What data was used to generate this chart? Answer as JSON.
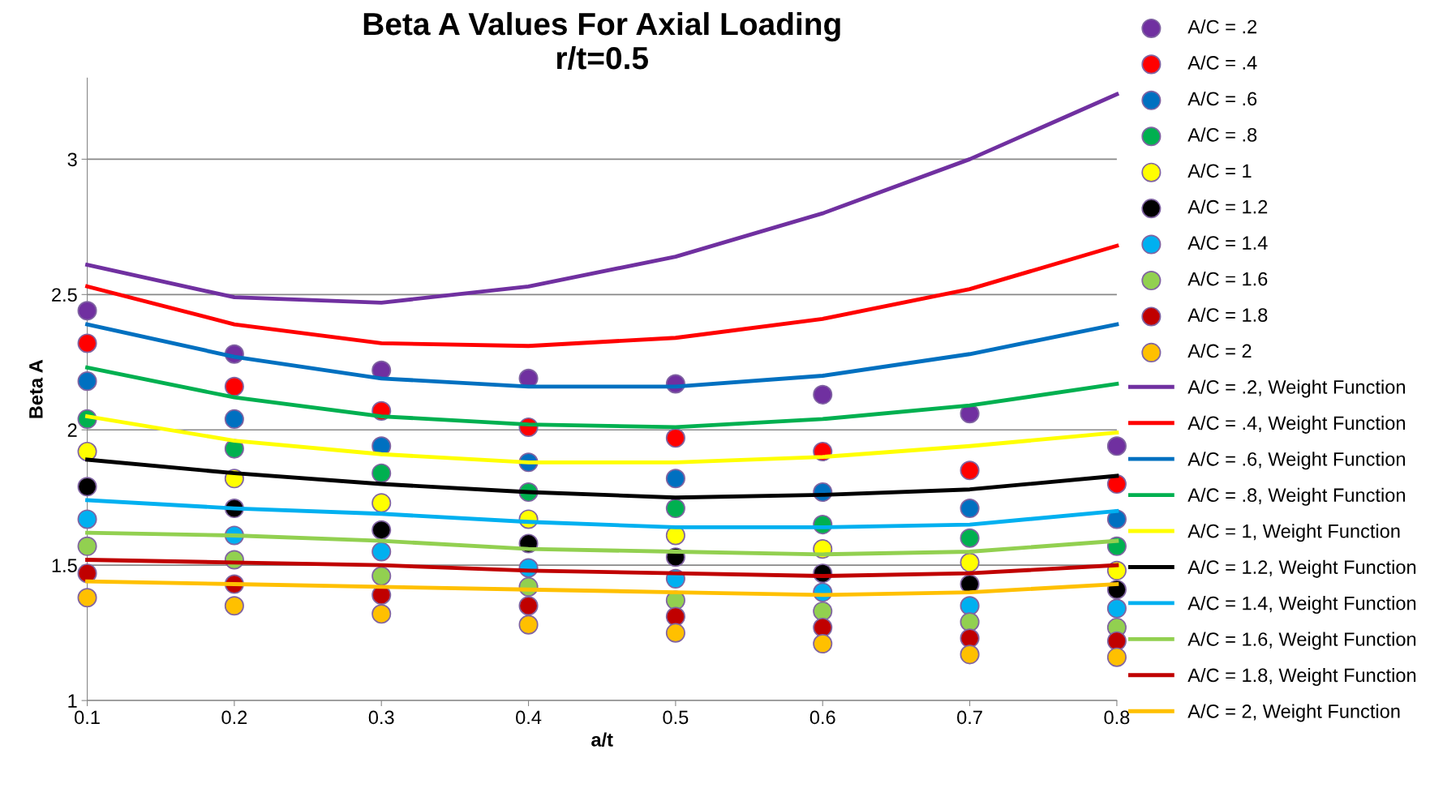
{
  "chart_data": {
    "type": "line",
    "title": "Beta A Values For Axial Loading\nr/t=0.5",
    "xlabel": "a/t",
    "ylabel": "Beta A",
    "x": [
      0.1,
      0.2,
      0.3,
      0.4,
      0.5,
      0.6,
      0.7,
      0.8
    ],
    "xlim": [
      0.1,
      0.8
    ],
    "xticks": [
      0.1,
      0.2,
      0.3,
      0.4,
      0.5,
      0.6,
      0.7,
      0.8
    ],
    "ylim": [
      1,
      3.3
    ],
    "yticks": [
      1,
      1.5,
      2,
      2.5,
      3
    ],
    "grid": "y",
    "legend": "right",
    "series": [
      {
        "name": "A/C = .2",
        "type": "scatter",
        "marker": "circle",
        "color": "#7030a0",
        "values": [
          2.44,
          2.28,
          2.22,
          2.19,
          2.17,
          2.13,
          2.06,
          1.94
        ]
      },
      {
        "name": "A/C = .4",
        "type": "scatter",
        "marker": "circle",
        "color": "#ff0000",
        "values": [
          2.32,
          2.16,
          2.07,
          2.01,
          1.97,
          1.92,
          1.85,
          1.8
        ]
      },
      {
        "name": "A/C = .6",
        "type": "scatter",
        "marker": "circle",
        "color": "#0070c0",
        "values": [
          2.18,
          2.04,
          1.94,
          1.88,
          1.82,
          1.77,
          1.71,
          1.67
        ]
      },
      {
        "name": "A/C = .8",
        "type": "scatter",
        "marker": "circle",
        "color": "#00b050",
        "values": [
          2.04,
          1.93,
          1.84,
          1.77,
          1.71,
          1.65,
          1.6,
          1.57
        ]
      },
      {
        "name": "A/C = 1",
        "type": "scatter",
        "marker": "circle",
        "color": "#ffff00",
        "values": [
          1.92,
          1.82,
          1.73,
          1.67,
          1.61,
          1.56,
          1.51,
          1.48
        ]
      },
      {
        "name": "A/C = 1.2",
        "type": "scatter",
        "marker": "circle",
        "color": "#000000",
        "values": [
          1.79,
          1.71,
          1.63,
          1.58,
          1.53,
          1.47,
          1.43,
          1.41
        ]
      },
      {
        "name": "A/C = 1.4",
        "type": "scatter",
        "marker": "circle",
        "color": "#00b0f0",
        "values": [
          1.67,
          1.61,
          1.55,
          1.49,
          1.45,
          1.4,
          1.35,
          1.34
        ]
      },
      {
        "name": "A/C = 1.6",
        "type": "scatter",
        "marker": "circle",
        "color": "#92d050",
        "values": [
          1.57,
          1.52,
          1.46,
          1.42,
          1.37,
          1.33,
          1.29,
          1.27
        ]
      },
      {
        "name": "A/C = 1.8",
        "type": "scatter",
        "marker": "circle",
        "color": "#c00000",
        "values": [
          1.47,
          1.43,
          1.39,
          1.35,
          1.31,
          1.27,
          1.23,
          1.22
        ]
      },
      {
        "name": "A/C = 2",
        "type": "scatter",
        "marker": "circle",
        "color": "#ffc000",
        "values": [
          1.38,
          1.35,
          1.32,
          1.28,
          1.25,
          1.21,
          1.17,
          1.16
        ]
      },
      {
        "name": "A/C = .2, Weight Function",
        "color": "#7030a0",
        "values": [
          2.61,
          2.49,
          2.47,
          2.53,
          2.64,
          2.8,
          3.0,
          3.24
        ]
      },
      {
        "name": "A/C = .4, Weight Function",
        "color": "#ff0000",
        "values": [
          2.53,
          2.39,
          2.32,
          2.31,
          2.34,
          2.41,
          2.52,
          2.68
        ]
      },
      {
        "name": "A/C = .6, Weight Function",
        "color": "#0070c0",
        "values": [
          2.39,
          2.27,
          2.19,
          2.16,
          2.16,
          2.2,
          2.28,
          2.39
        ]
      },
      {
        "name": "A/C = .8, Weight Function",
        "color": "#00b050",
        "values": [
          2.23,
          2.12,
          2.05,
          2.02,
          2.01,
          2.04,
          2.09,
          2.17
        ]
      },
      {
        "name": "A/C = 1, Weight Function",
        "color": "#ffff00",
        "values": [
          2.05,
          1.96,
          1.91,
          1.88,
          1.88,
          1.9,
          1.94,
          1.99
        ]
      },
      {
        "name": "A/C = 1.2, Weight Function",
        "color": "#000000",
        "values": [
          1.89,
          1.84,
          1.8,
          1.77,
          1.75,
          1.76,
          1.78,
          1.83
        ]
      },
      {
        "name": "A/C = 1.4, Weight Function",
        "color": "#00b0f0",
        "values": [
          1.74,
          1.71,
          1.69,
          1.66,
          1.64,
          1.64,
          1.65,
          1.7
        ]
      },
      {
        "name": "A/C = 1.6, Weight Function",
        "color": "#92d050",
        "values": [
          1.62,
          1.61,
          1.59,
          1.56,
          1.55,
          1.54,
          1.55,
          1.59
        ]
      },
      {
        "name": "A/C = 1.8, Weight Function",
        "color": "#c00000",
        "values": [
          1.52,
          1.51,
          1.5,
          1.48,
          1.47,
          1.46,
          1.47,
          1.5
        ]
      },
      {
        "name": "A/C = 2, Weight Function",
        "color": "#ffc000",
        "values": [
          1.44,
          1.43,
          1.42,
          1.41,
          1.4,
          1.39,
          1.4,
          1.43
        ]
      }
    ]
  }
}
